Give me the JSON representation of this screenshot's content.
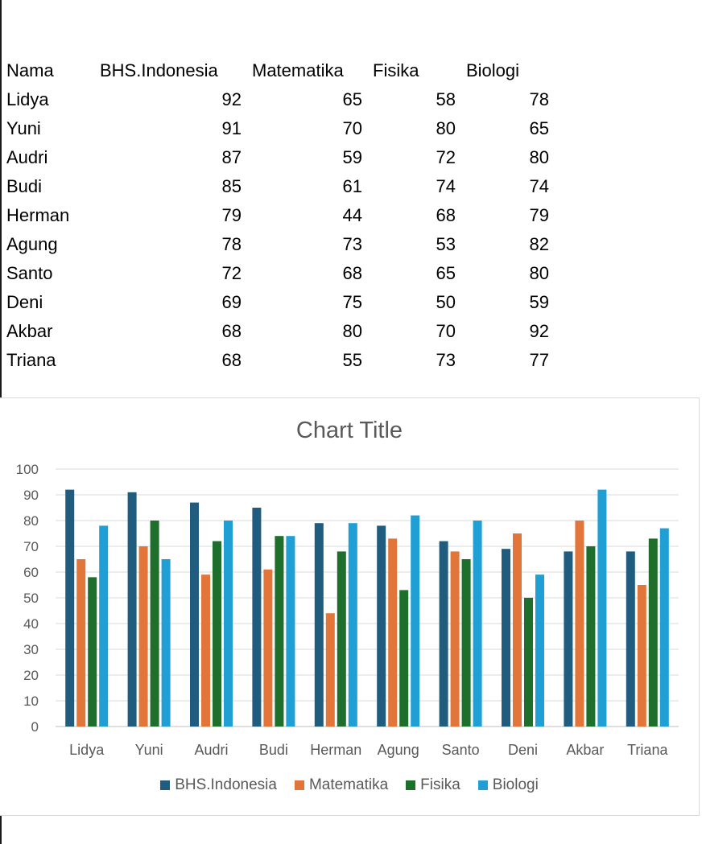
{
  "table": {
    "headers": [
      "Nama",
      "BHS.Indonesia",
      "Matematika",
      "Fisika",
      "Biologi"
    ],
    "rows": [
      [
        "Lidya",
        "92",
        "65",
        "58",
        "78"
      ],
      [
        "Yuni",
        "91",
        "70",
        "80",
        "65"
      ],
      [
        "Audri",
        "87",
        "59",
        "72",
        "80"
      ],
      [
        "Budi",
        "85",
        "61",
        "74",
        "74"
      ],
      [
        "Herman",
        "79",
        "44",
        "68",
        "79"
      ],
      [
        "Agung",
        "78",
        "73",
        "53",
        "82"
      ],
      [
        "Santo",
        "72",
        "68",
        "65",
        "80"
      ],
      [
        "Deni",
        "69",
        "75",
        "50",
        "59"
      ],
      [
        "Akbar",
        "68",
        "80",
        "70",
        "92"
      ],
      [
        "Triana",
        "68",
        "55",
        "73",
        "77"
      ]
    ]
  },
  "chart_data": {
    "type": "bar",
    "title": "Chart Title",
    "xlabel": "",
    "ylabel": "",
    "ylim": [
      0,
      100
    ],
    "yticks": [
      0,
      10,
      20,
      30,
      40,
      50,
      60,
      70,
      80,
      90,
      100
    ],
    "grid": true,
    "legend_position": "bottom",
    "categories": [
      "Lidya",
      "Yuni",
      "Audri",
      "Budi",
      "Herman",
      "Agung",
      "Santo",
      "Deni",
      "Akbar",
      "Triana"
    ],
    "series": [
      {
        "name": "BHS.Indonesia",
        "color": "#1f5c7e",
        "values": [
          92,
          91,
          87,
          85,
          79,
          78,
          72,
          69,
          68,
          68
        ]
      },
      {
        "name": "Matematika",
        "color": "#e2763a",
        "values": [
          65,
          70,
          59,
          61,
          44,
          73,
          68,
          75,
          80,
          55
        ]
      },
      {
        "name": "Fisika",
        "color": "#1e6e2c",
        "values": [
          58,
          80,
          72,
          74,
          68,
          53,
          65,
          50,
          70,
          73
        ]
      },
      {
        "name": "Biologi",
        "color": "#1f9fd4",
        "values": [
          78,
          65,
          80,
          74,
          79,
          82,
          80,
          59,
          92,
          77
        ]
      }
    ]
  }
}
